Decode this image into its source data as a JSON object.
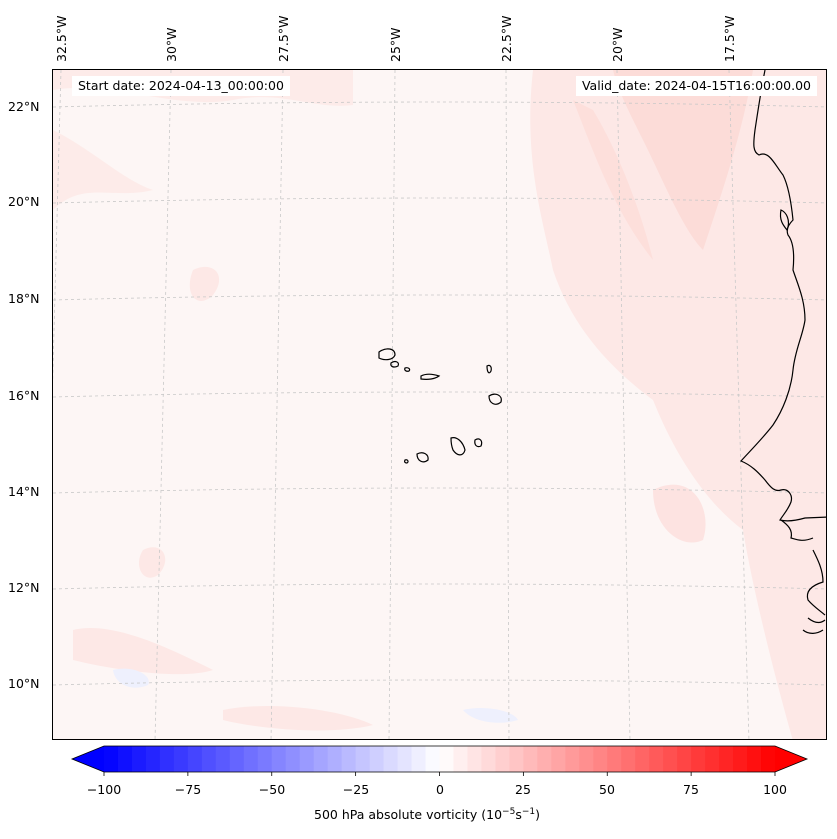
{
  "map": {
    "start_label": "Start date: 2024-04-13_00:00:00",
    "valid_label": "Valid_date: 2024-04-15T16:00:00.00",
    "longitude_labels": [
      "32.5°W",
      "30°W",
      "27.5°W",
      "25°W",
      "22.5°W",
      "20°W",
      "17.5°W"
    ],
    "latitude_labels": [
      "22°N",
      "20°N",
      "18°N",
      "16°N",
      "14°N",
      "12°N",
      "10°N"
    ],
    "field_colors": {
      "background": "#fdf6f5",
      "light_positive": "#fde8e6",
      "moderate_positive": "#fcdcd8",
      "light_negative": "#eef0fd"
    },
    "coastline_color": "#000000",
    "gridline_color": "#c8c8c8"
  },
  "colorbar": {
    "min": -100,
    "max": 100,
    "levels": 48,
    "tick_labels": [
      "−100",
      "−75",
      "−50",
      "−25",
      "0",
      "25",
      "50",
      "75",
      "100"
    ],
    "label_text": "500 hPa absolute vorticity (10",
    "label_exp1": "−5",
    "label_mid": "s",
    "label_exp2": "−1",
    "label_end": ")",
    "colormap": "bwr",
    "low_color": "#0000ff",
    "mid_color": "#ffffff",
    "high_color": "#ff0000"
  }
}
